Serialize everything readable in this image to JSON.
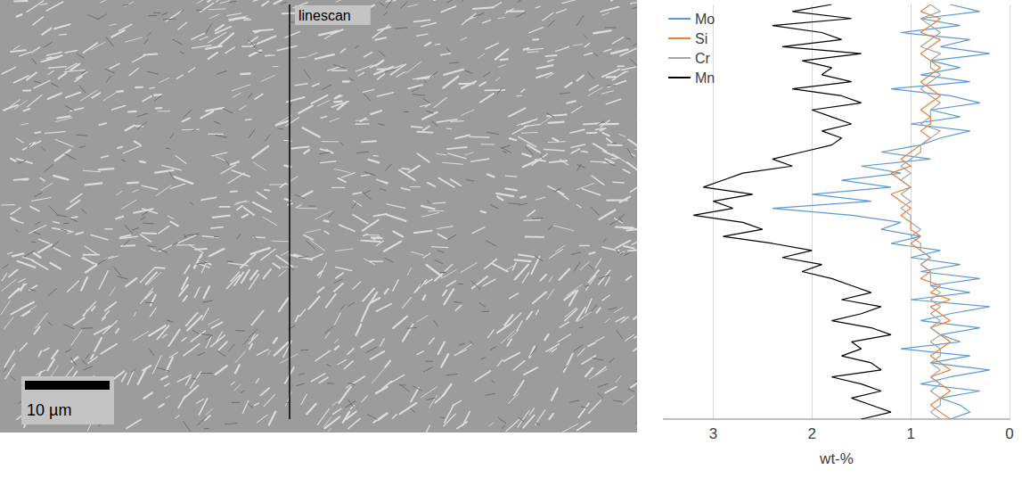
{
  "image": {
    "linescan_label": "linescan",
    "scale_bar_label": "10 µm"
  },
  "chart_data": {
    "type": "line",
    "orientation": "horizontal",
    "xlabel": "wt-%",
    "xlim": [
      3.5,
      0
    ],
    "xticks": [
      0,
      1,
      2,
      3
    ],
    "grid": true,
    "legend": "top-left",
    "tick_labels": "x",
    "categories": [
      null,
      null,
      null,
      null,
      null,
      null,
      null,
      null,
      null,
      null,
      null,
      null,
      null,
      null,
      null,
      null,
      null,
      null,
      null,
      null,
      null,
      null,
      null,
      null,
      null,
      null,
      null,
      null,
      null,
      null,
      null,
      null,
      null,
      null,
      null,
      null,
      null,
      null,
      null,
      null,
      null,
      null,
      null,
      null,
      null,
      null,
      null,
      null,
      null,
      null,
      null,
      null,
      null,
      null,
      null,
      null,
      null,
      null,
      null,
      null
    ],
    "series": [
      {
        "name": "Mo",
        "color": "#5b9bd5",
        "values": [
          0.6,
          0.3,
          0.9,
          0.5,
          1.1,
          0.4,
          0.7,
          0.2,
          0.8,
          0.5,
          0.9,
          0.4,
          1.2,
          0.6,
          0.3,
          0.8,
          0.5,
          1.0,
          0.4,
          0.7,
          0.9,
          1.3,
          0.8,
          1.5,
          1.1,
          1.7,
          1.2,
          2.0,
          1.4,
          2.4,
          1.6,
          1.1,
          1.3,
          0.9,
          1.2,
          0.7,
          1.0,
          0.5,
          0.9,
          0.3,
          0.8,
          0.4,
          1.0,
          0.2,
          0.6,
          0.9,
          0.3,
          0.7,
          0.5,
          1.1,
          0.4,
          0.8,
          0.2,
          0.6,
          0.9,
          0.3,
          0.7,
          0.5,
          0.4,
          0.6
        ]
      },
      {
        "name": "Si",
        "color": "#ed7d31",
        "values": [
          0.8,
          0.9,
          0.7,
          0.8,
          0.9,
          0.7,
          0.8,
          0.9,
          0.8,
          0.7,
          0.8,
          0.9,
          0.8,
          0.7,
          0.8,
          0.9,
          0.8,
          0.8,
          0.9,
          0.8,
          0.9,
          1.0,
          1.1,
          1.0,
          1.2,
          1.1,
          1.0,
          1.2,
          1.1,
          1.0,
          1.1,
          1.0,
          1.0,
          0.9,
          1.0,
          0.9,
          0.8,
          0.9,
          0.8,
          0.9,
          0.7,
          0.8,
          0.6,
          0.8,
          0.7,
          0.6,
          0.8,
          0.7,
          0.6,
          0.7,
          0.8,
          0.7,
          0.6,
          0.8,
          0.7,
          0.6,
          0.7,
          0.8,
          0.7,
          0.6
        ]
      },
      {
        "name": "Cr",
        "color": "#a5a5a5",
        "values": [
          0.8,
          0.7,
          0.9,
          0.8,
          0.7,
          0.8,
          0.9,
          0.7,
          0.8,
          0.8,
          0.7,
          0.8,
          0.9,
          0.8,
          0.7,
          0.8,
          0.8,
          0.9,
          0.7,
          0.8,
          0.9,
          0.9,
          1.0,
          1.1,
          1.0,
          1.1,
          1.0,
          1.1,
          1.0,
          1.1,
          1.0,
          1.0,
          0.9,
          1.0,
          0.9,
          0.9,
          0.8,
          0.9,
          0.8,
          0.8,
          0.8,
          0.7,
          0.8,
          0.7,
          0.8,
          0.7,
          0.8,
          0.7,
          0.8,
          0.7,
          0.7,
          0.8,
          0.7,
          0.8,
          0.7,
          0.8,
          0.7,
          0.7,
          0.8,
          0.7
        ]
      },
      {
        "name": "Mn",
        "color": "#000000",
        "values": [
          1.8,
          2.2,
          1.6,
          2.4,
          1.9,
          1.7,
          2.3,
          1.5,
          2.1,
          1.8,
          1.9,
          1.6,
          2.2,
          1.7,
          1.5,
          2.0,
          1.8,
          1.6,
          1.9,
          1.7,
          1.8,
          2.1,
          2.4,
          2.2,
          2.7,
          2.9,
          3.1,
          2.6,
          3.0,
          2.8,
          3.2,
          2.7,
          2.5,
          2.9,
          2.4,
          2.0,
          2.3,
          1.9,
          2.1,
          1.8,
          1.6,
          1.4,
          1.7,
          1.3,
          1.5,
          1.8,
          1.4,
          1.2,
          1.6,
          1.5,
          1.7,
          1.4,
          1.3,
          1.8,
          1.5,
          1.3,
          1.6,
          1.4,
          1.2,
          1.5
        ]
      }
    ]
  }
}
